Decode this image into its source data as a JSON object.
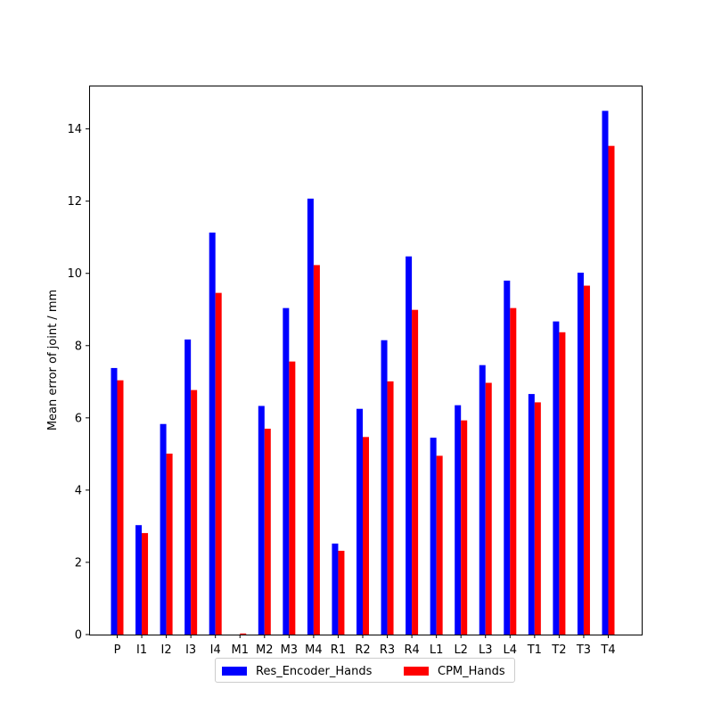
{
  "chart_data": {
    "type": "bar",
    "title": "",
    "xlabel": "",
    "ylabel": "Mean error of joint / mm",
    "ylim": [
      0,
      15.2
    ],
    "yticks": [
      0,
      2,
      4,
      6,
      8,
      10,
      12,
      14
    ],
    "categories": [
      "P",
      "I1",
      "I2",
      "I3",
      "I4",
      "M1",
      "M2",
      "M3",
      "M4",
      "R1",
      "R2",
      "R3",
      "R4",
      "L1",
      "L2",
      "L3",
      "L4",
      "T1",
      "T2",
      "T3",
      "T4"
    ],
    "series": [
      {
        "name": "Res_Encoder_Hands",
        "color": "#0000ff",
        "values": [
          7.38,
          3.03,
          5.83,
          8.17,
          11.13,
          0.0,
          6.33,
          9.04,
          12.07,
          2.52,
          6.25,
          8.15,
          10.47,
          5.45,
          6.35,
          7.46,
          9.8,
          6.66,
          8.67,
          10.02,
          14.5
        ]
      },
      {
        "name": "CPM_Hands",
        "color": "#ff0000",
        "values": [
          7.04,
          2.81,
          5.01,
          6.77,
          9.46,
          0.03,
          5.7,
          7.56,
          10.23,
          2.32,
          5.47,
          7.01,
          8.99,
          4.95,
          5.93,
          6.97,
          9.04,
          6.43,
          8.37,
          9.66,
          13.53
        ]
      }
    ],
    "legend": {
      "position": "bottom-center",
      "columns": 2
    }
  }
}
